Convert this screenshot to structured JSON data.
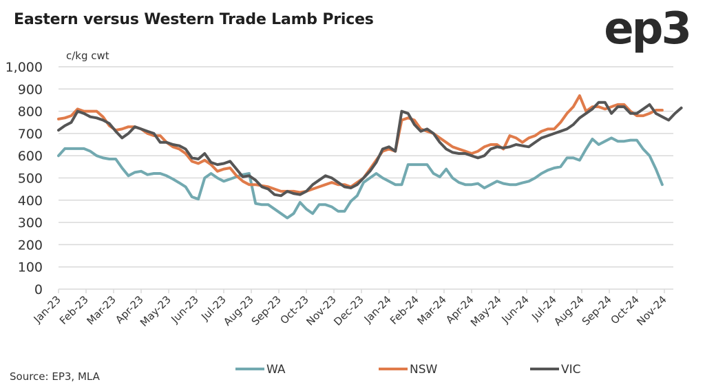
{
  "title": "Eastern versus Western Trade Lamb Prices",
  "logo_text": "ep3",
  "source": "Source: EP3, MLA",
  "chart_data": {
    "type": "line",
    "title": "Eastern versus Western Trade Lamb Prices",
    "ylabel": "c/kg cwt",
    "xlabel": "",
    "ylim": [
      0,
      1000
    ],
    "yticks": [
      0,
      100,
      200,
      300,
      400,
      500,
      600,
      700,
      800,
      900,
      1000
    ],
    "ytick_labels": [
      "0",
      "100",
      "200",
      "300",
      "400",
      "500",
      "600",
      "700",
      "800",
      "900",
      "1,000"
    ],
    "x_tick_labels": [
      "Jan-23",
      "Feb-23",
      "Mar-23",
      "Apr-23",
      "May-23",
      "Jun-23",
      "Jul-23",
      "Aug-23",
      "Sep-23",
      "Oct-23",
      "Nov-23",
      "Dec-23",
      "Jan-24",
      "Feb-24",
      "Mar-24",
      "Apr-24",
      "May-24",
      "Jun-24",
      "Jul-24",
      "Aug-24",
      "Sep-24",
      "Oct-24",
      "Nov-24"
    ],
    "x_frequency": "weekly",
    "grid": true,
    "legend_position": "bottom",
    "series": [
      {
        "name": "WA",
        "color": "#72a9b0",
        "values": [
          600,
          632,
          632,
          632,
          632,
          620,
          600,
          590,
          585,
          585,
          545,
          510,
          525,
          530,
          515,
          520,
          520,
          510,
          495,
          478,
          460,
          415,
          405,
          500,
          520,
          500,
          485,
          495,
          505,
          515,
          520,
          385,
          380,
          380,
          360,
          340,
          320,
          340,
          390,
          360,
          340,
          380,
          380,
          370,
          350,
          350,
          395,
          420,
          480,
          500,
          520,
          500,
          485,
          470,
          470,
          560,
          560,
          560,
          560,
          520,
          505,
          540,
          500,
          480,
          470,
          470,
          475,
          455,
          470,
          485,
          475,
          470,
          470,
          478,
          485,
          500,
          520,
          535,
          545,
          550,
          590,
          590,
          580,
          630,
          675,
          650,
          665,
          680,
          665,
          665,
          670,
          670,
          630,
          600,
          540,
          470
        ]
      },
      {
        "name": "NSW",
        "color": "#e07b4a",
        "values": [
          765,
          770,
          780,
          810,
          800,
          800,
          800,
          775,
          735,
          715,
          720,
          730,
          730,
          720,
          700,
          690,
          690,
          660,
          640,
          630,
          610,
          575,
          565,
          580,
          560,
          530,
          540,
          545,
          510,
          485,
          470,
          470,
          465,
          460,
          450,
          440,
          440,
          440,
          435,
          440,
          450,
          460,
          470,
          480,
          470,
          470,
          460,
          480,
          500,
          540,
          580,
          620,
          630,
          620,
          760,
          770,
          760,
          720,
          710,
          700,
          680,
          660,
          640,
          630,
          620,
          610,
          620,
          640,
          650,
          650,
          630,
          690,
          680,
          660,
          680,
          690,
          710,
          720,
          720,
          750,
          790,
          820,
          870,
          800,
          820,
          820,
          810,
          820,
          830,
          830,
          800,
          780,
          780,
          790,
          805,
          805
        ]
      },
      {
        "name": "VIC",
        "color": "#555555",
        "values": [
          715,
          735,
          750,
          800,
          790,
          775,
          770,
          760,
          745,
          710,
          680,
          700,
          730,
          720,
          710,
          700,
          660,
          660,
          650,
          645,
          630,
          590,
          585,
          610,
          570,
          560,
          565,
          575,
          540,
          505,
          510,
          490,
          460,
          450,
          425,
          420,
          440,
          430,
          425,
          440,
          470,
          490,
          510,
          500,
          480,
          460,
          455,
          470,
          500,
          530,
          570,
          630,
          640,
          620,
          800,
          790,
          740,
          710,
          720,
          700,
          660,
          630,
          615,
          610,
          610,
          600,
          590,
          600,
          630,
          640,
          635,
          640,
          650,
          645,
          640,
          660,
          680,
          690,
          700,
          710,
          720,
          740,
          770,
          790,
          810,
          840,
          840,
          790,
          820,
          820,
          790,
          790,
          810,
          830,
          790,
          775,
          760,
          790,
          815
        ]
      }
    ]
  }
}
